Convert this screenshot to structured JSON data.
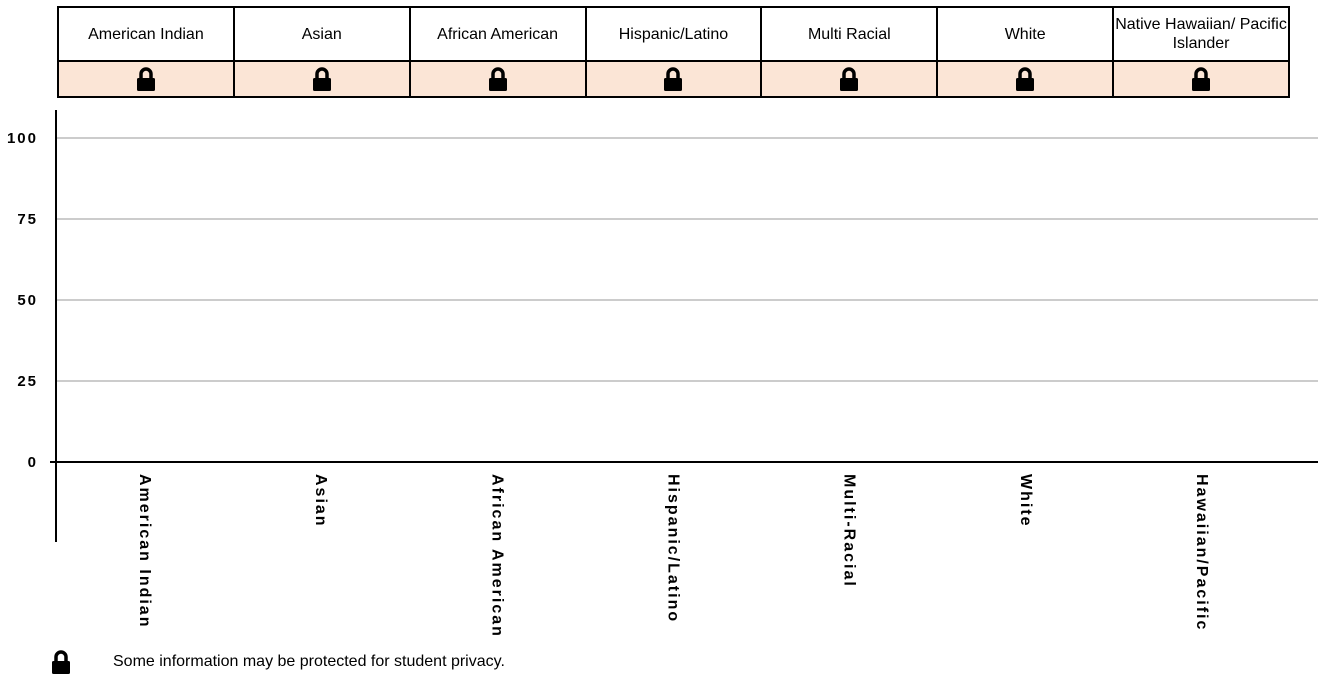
{
  "header_table": {
    "columns": [
      "American Indian",
      "Asian",
      "African American",
      "Hispanic/Latino",
      "Multi Racial",
      "White",
      "Native Hawaiian/ Pacific Islander"
    ],
    "row_icon": "lock-icon",
    "row_color": "#fbe5d6"
  },
  "chart_data": {
    "type": "bar",
    "categories": [
      "American Indian",
      "Asian",
      "African American",
      "Hispanic/Latino",
      "Multi-Racial",
      "White",
      "Hawaiian/Pacific"
    ],
    "values": [
      null,
      null,
      null,
      null,
      null,
      null,
      null
    ],
    "y_ticks": [
      "0",
      "25",
      "50",
      "75",
      "100"
    ],
    "ylim": [
      0,
      100
    ],
    "grid": true,
    "title": "",
    "xlabel": "",
    "ylabel": ""
  },
  "footer": {
    "icon": "lock-icon",
    "note": "Some information may be protected for student privacy."
  }
}
